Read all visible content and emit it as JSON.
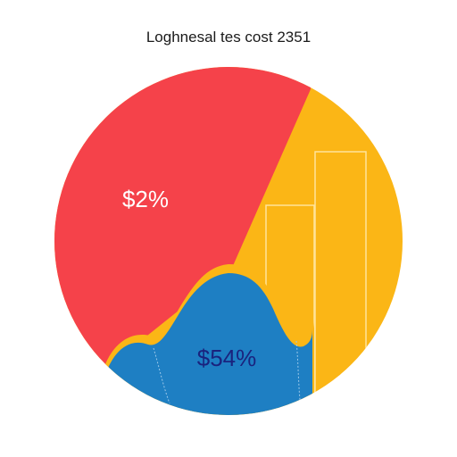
{
  "chart_data": {
    "type": "pie",
    "title": "Loghnesal tes cost 2351",
    "slices": [
      {
        "label": "$2%",
        "color": "#f5424a",
        "label_color": "#ffffff"
      },
      {
        "label": "",
        "color": "#fbb616",
        "label_color": "#ffffff"
      },
      {
        "label": "$54%",
        "color": "#1e7fc3",
        "label_color": "#1a237e"
      }
    ],
    "overlay_bars": {
      "color": "#fbb616",
      "outline_color": "#ffe39a"
    },
    "area_overlay": {
      "fill": "#1e7fc3",
      "outline_color": "#fbb616"
    }
  }
}
